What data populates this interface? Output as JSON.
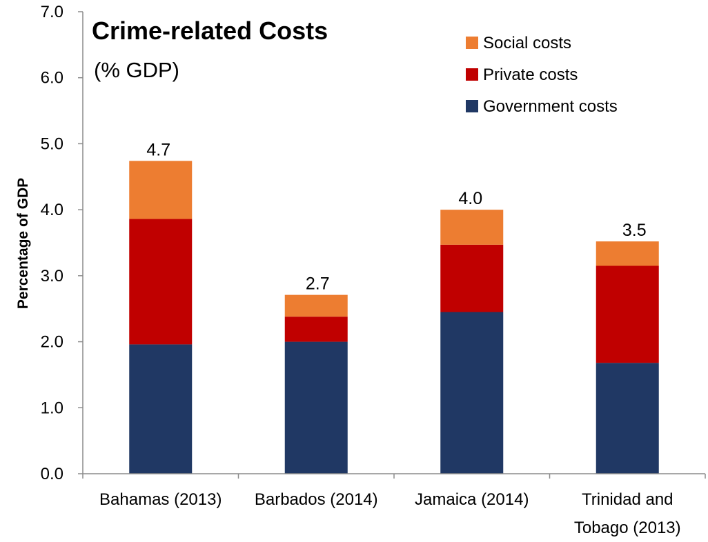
{
  "chart_data": {
    "type": "bar",
    "stacked": true,
    "title": "Crime-related Costs",
    "subtitle": "(% GDP)",
    "xlabel": "",
    "ylabel": "Percentage of GDP",
    "ylim": [
      0,
      7
    ],
    "yticks": [
      "0.0",
      "1.0",
      "2.0",
      "3.0",
      "4.0",
      "5.0",
      "6.0",
      "7.0"
    ],
    "grid": false,
    "legend_position": "top-right",
    "categories": [
      [
        "Bahamas (2013)"
      ],
      [
        "Barbados (2014)"
      ],
      [
        "Jamaica (2014)"
      ],
      [
        "Trinidad and",
        "Tobago (2013)"
      ]
    ],
    "series": [
      {
        "name": "Government costs",
        "color": "#203864",
        "values": [
          1.96,
          2.0,
          2.45,
          1.68
        ]
      },
      {
        "name": "Private costs",
        "color": "#C00000",
        "values": [
          1.9,
          0.38,
          1.02,
          1.47
        ]
      },
      {
        "name": "Social costs",
        "color": "#ED7D31",
        "values": [
          0.88,
          0.33,
          0.53,
          0.37
        ]
      }
    ],
    "totals": [
      "4.7",
      "2.7",
      "4.0",
      "3.5"
    ],
    "legend_order": [
      "Social costs",
      "Private costs",
      "Government costs"
    ]
  }
}
